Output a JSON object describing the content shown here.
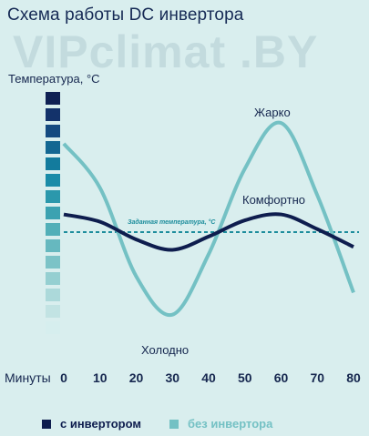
{
  "chart_data": {
    "type": "line",
    "title": "Схема работы DC инвертора",
    "watermark": "VIPclimat .BY",
    "ylabel": "Температура, °C",
    "xlabel": "Минуты",
    "x": [
      0,
      10,
      20,
      30,
      40,
      50,
      60,
      70,
      80
    ],
    "xticks": [
      "0",
      "10",
      "20",
      "30",
      "40",
      "50",
      "60",
      "70",
      "80"
    ],
    "xlim": [
      0,
      80
    ],
    "setpoint_label": "Заданная температура, °C",
    "annotations": {
      "hot": "Жарко",
      "comfort": "Комфортно",
      "cold": "Холодно"
    },
    "series": [
      {
        "name": "с инвертором",
        "color": "#0e1d4e",
        "values": [
          1.2,
          0.7,
          -0.5,
          -1.2,
          -0.3,
          0.8,
          1.2,
          0.2,
          -1.0
        ]
      },
      {
        "name": "без инвертора",
        "color": "#74c1c4",
        "values": [
          6.0,
          3.0,
          -3.0,
          -5.6,
          -1.5,
          4.3,
          7.4,
          2.5,
          -4.1
        ]
      }
    ],
    "scale_colors": [
      "#0f2154",
      "#13326a",
      "#144a80",
      "#136792",
      "#137b9d",
      "#1a8ca8",
      "#2b98ac",
      "#3ca2b1",
      "#52afb8",
      "#66b8bf",
      "#7cc3c7",
      "#95cfd1",
      "#acd9da",
      "#c2e3e3",
      "#d6eeee"
    ],
    "grid": false,
    "legend_position": "bottom"
  }
}
